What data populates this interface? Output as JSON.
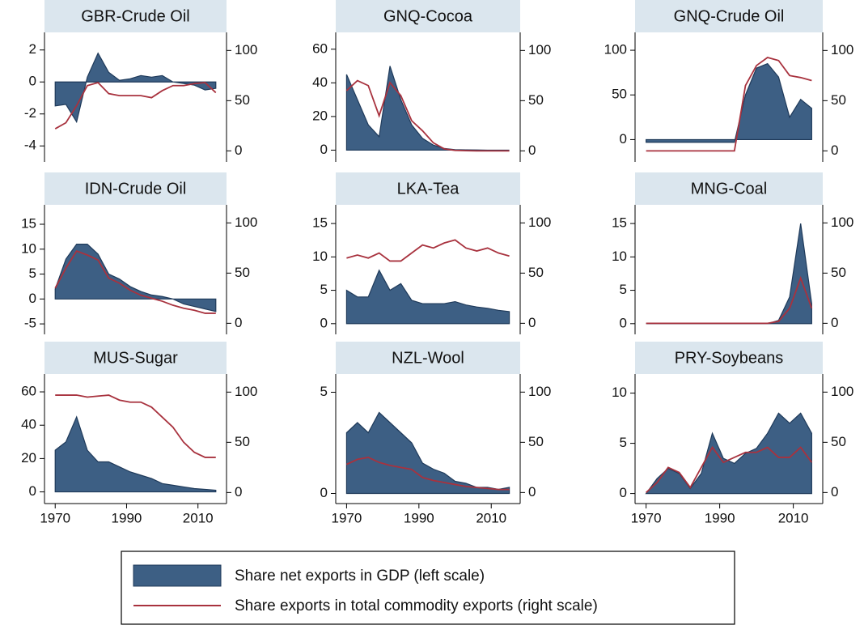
{
  "chart_data": [
    {
      "type": "combo",
      "title": "GBR-Crude Oil",
      "x": [
        1970,
        1973,
        1976,
        1979,
        1982,
        1985,
        1988,
        1991,
        1994,
        1997,
        2000,
        2003,
        2006,
        2009,
        2012,
        2015
      ],
      "xlim": [
        1967,
        2018
      ],
      "ylim": [
        -5,
        3.1
      ],
      "yticks": [
        -4,
        -2,
        0,
        2
      ],
      "y2lim": [
        -11,
        118
      ],
      "y2ticks": [
        0,
        50,
        100
      ],
      "series": [
        {
          "type": "area",
          "color": "#3d5f84",
          "values": [
            -1.5,
            -1.4,
            -2.5,
            0.3,
            1.8,
            0.6,
            0.1,
            0.2,
            0.4,
            0.3,
            0.4,
            0,
            -0.1,
            -0.2,
            -0.5,
            -0.4
          ]
        },
        {
          "type": "line",
          "axis": "y2",
          "color": "#a8323e",
          "values": [
            22,
            28,
            45,
            65,
            68,
            57,
            55,
            55,
            55,
            53,
            60,
            65,
            65,
            67,
            68,
            58
          ]
        }
      ]
    },
    {
      "type": "combo",
      "title": "GNQ-Cocoa",
      "x": [
        1970,
        1973,
        1976,
        1979,
        1982,
        1985,
        1988,
        1991,
        1994,
        1997,
        2000,
        2003,
        2006,
        2009,
        2012,
        2015
      ],
      "xlim": [
        1967,
        2018
      ],
      "ylim": [
        -7,
        70
      ],
      "yticks": [
        0,
        20,
        40,
        60
      ],
      "y2lim": [
        -11,
        118
      ],
      "y2ticks": [
        0,
        50,
        100
      ],
      "series": [
        {
          "type": "area",
          "color": "#3d5f84",
          "values": [
            45,
            30,
            15,
            8,
            50,
            30,
            15,
            7,
            3,
            1,
            0.3,
            0.2,
            0.1,
            0,
            0,
            0
          ]
        },
        {
          "type": "line",
          "axis": "y2",
          "color": "#a8323e",
          "values": [
            60,
            70,
            65,
            35,
            68,
            55,
            30,
            20,
            8,
            2,
            0.5,
            0.2,
            0,
            0,
            0,
            0
          ]
        }
      ]
    },
    {
      "type": "combo",
      "title": "GNQ-Crude Oil",
      "x": [
        1970,
        1973,
        1976,
        1979,
        1982,
        1985,
        1988,
        1991,
        1994,
        1997,
        2000,
        2003,
        2006,
        2009,
        2012,
        2015
      ],
      "xlim": [
        1967,
        2018
      ],
      "ylim": [
        -25,
        120
      ],
      "yticks": [
        0,
        50,
        100
      ],
      "y2lim": [
        -11,
        118
      ],
      "y2ticks": [
        0,
        50,
        100
      ],
      "series": [
        {
          "type": "area",
          "color": "#3d5f84",
          "values": [
            -3,
            -3,
            -3,
            -3,
            -3,
            -3,
            -3,
            -3,
            -3,
            50,
            80,
            85,
            70,
            25,
            45,
            35
          ]
        },
        {
          "type": "line",
          "axis": "y2",
          "color": "#a8323e",
          "values": [
            0,
            0,
            0,
            0,
            0,
            0,
            0,
            0,
            0,
            65,
            85,
            93,
            90,
            75,
            73,
            70
          ]
        }
      ]
    },
    {
      "type": "combo",
      "title": "IDN-Crude Oil",
      "x": [
        1970,
        1973,
        1976,
        1979,
        1982,
        1985,
        1988,
        1991,
        1994,
        1997,
        2000,
        2003,
        2006,
        2009,
        2012,
        2015
      ],
      "xlim": [
        1967,
        2018
      ],
      "ylim": [
        -7.1,
        18.9
      ],
      "yticks": [
        -5,
        0,
        5,
        10,
        15
      ],
      "y2lim": [
        -11,
        118
      ],
      "y2ticks": [
        0,
        50,
        100
      ],
      "series": [
        {
          "type": "area",
          "color": "#3d5f84",
          "values": [
            2,
            8,
            11,
            11,
            9,
            5,
            4,
            2.5,
            1.5,
            0.8,
            0.5,
            0,
            -1,
            -1.5,
            -2,
            -2.5
          ]
        },
        {
          "type": "line",
          "axis": "y2",
          "color": "#a8323e",
          "values": [
            35,
            55,
            72,
            68,
            63,
            45,
            40,
            33,
            28,
            25,
            22,
            18,
            15,
            13,
            10,
            10
          ]
        }
      ]
    },
    {
      "type": "combo",
      "title": "LKA-Tea",
      "x": [
        1970,
        1973,
        1976,
        1979,
        1982,
        1985,
        1988,
        1991,
        1994,
        1997,
        2000,
        2003,
        2006,
        2009,
        2012,
        2015
      ],
      "xlim": [
        1967,
        2018
      ],
      "ylim": [
        -1.6,
        17.8
      ],
      "yticks": [
        0,
        5,
        10,
        15
      ],
      "y2lim": [
        -11,
        118
      ],
      "y2ticks": [
        0,
        50,
        100
      ],
      "series": [
        {
          "type": "area",
          "color": "#3d5f84",
          "values": [
            5,
            4,
            4,
            8,
            5,
            6,
            3.5,
            3,
            3,
            3,
            3.3,
            2.8,
            2.5,
            2.3,
            2,
            1.8
          ]
        },
        {
          "type": "line",
          "axis": "y2",
          "color": "#a8323e",
          "values": [
            65,
            68,
            65,
            70,
            62,
            62,
            70,
            78,
            75,
            80,
            83,
            75,
            72,
            75,
            70,
            67
          ]
        }
      ]
    },
    {
      "type": "combo",
      "title": "MNG-Coal",
      "x": [
        1970,
        1973,
        1976,
        1979,
        1982,
        1985,
        1988,
        1991,
        1994,
        1997,
        2000,
        2003,
        2006,
        2009,
        2012,
        2015
      ],
      "xlim": [
        1967,
        2018
      ],
      "ylim": [
        -1.6,
        17.8
      ],
      "yticks": [
        0,
        5,
        10,
        15
      ],
      "y2lim": [
        -11,
        118
      ],
      "y2ticks": [
        0,
        50,
        100
      ],
      "series": [
        {
          "type": "area",
          "color": "#3d5f84",
          "values": [
            0,
            0,
            0,
            0,
            0,
            0,
            0,
            0,
            0,
            0,
            0,
            0,
            0.5,
            4,
            15,
            3
          ]
        },
        {
          "type": "line",
          "axis": "y2",
          "color": "#a8323e",
          "values": [
            0,
            0,
            0,
            0,
            0,
            0,
            0,
            0,
            0,
            0,
            0,
            0,
            2,
            15,
            45,
            15
          ]
        }
      ]
    },
    {
      "type": "combo",
      "title": "MUS-Sugar",
      "x": [
        1970,
        1973,
        1976,
        1979,
        1982,
        1985,
        1988,
        1991,
        1994,
        1997,
        2000,
        2003,
        2006,
        2009,
        2012,
        2015
      ],
      "xlim": [
        1967,
        2018
      ],
      "xticks": [
        1970,
        1990,
        2010
      ],
      "ylim": [
        -7,
        70.7
      ],
      "yticks": [
        0,
        20,
        40,
        60
      ],
      "y2lim": [
        -11,
        118
      ],
      "y2ticks": [
        0,
        50,
        100
      ],
      "series": [
        {
          "type": "area",
          "color": "#3d5f84",
          "values": [
            25,
            30,
            45,
            25,
            18,
            18,
            15,
            12,
            10,
            8,
            5,
            4,
            3,
            2,
            1.5,
            1
          ]
        },
        {
          "type": "line",
          "axis": "y2",
          "color": "#a8323e",
          "values": [
            97,
            97,
            97,
            95,
            96,
            97,
            92,
            90,
            90,
            85,
            75,
            65,
            50,
            40,
            35,
            35
          ]
        }
      ]
    },
    {
      "type": "combo",
      "title": "NZL-Wool",
      "x": [
        1970,
        1973,
        1976,
        1979,
        1982,
        1985,
        1988,
        1991,
        1994,
        1997,
        2000,
        2003,
        2006,
        2009,
        2012,
        2015
      ],
      "xlim": [
        1967,
        2018
      ],
      "xticks": [
        1970,
        1990,
        2010
      ],
      "ylim": [
        -0.5,
        5.9
      ],
      "yticks": [
        0,
        5
      ],
      "y2lim": [
        -11,
        118
      ],
      "y2ticks": [
        0,
        50,
        100
      ],
      "series": [
        {
          "type": "area",
          "color": "#3d5f84",
          "values": [
            3,
            3.5,
            3,
            4,
            3.5,
            3,
            2.5,
            1.5,
            1.2,
            1,
            0.6,
            0.5,
            0.3,
            0.3,
            0.2,
            0.3
          ]
        },
        {
          "type": "line",
          "axis": "y2",
          "color": "#a8323e",
          "values": [
            28,
            33,
            35,
            30,
            27,
            25,
            23,
            15,
            12,
            10,
            8,
            6,
            5,
            4,
            3,
            3
          ]
        }
      ]
    },
    {
      "type": "combo",
      "title": "PRY-Soybeans",
      "x": [
        1970,
        1973,
        1976,
        1979,
        1982,
        1985,
        1988,
        1991,
        1994,
        1997,
        2000,
        2003,
        2006,
        2009,
        2012,
        2015
      ],
      "xlim": [
        1967,
        2018
      ],
      "xticks": [
        1970,
        1990,
        2010
      ],
      "ylim": [
        -1,
        11.9
      ],
      "yticks": [
        0,
        5,
        10
      ],
      "y2lim": [
        -11,
        118
      ],
      "y2ticks": [
        0,
        50,
        100
      ],
      "series": [
        {
          "type": "area",
          "color": "#3d5f84",
          "values": [
            0,
            1.5,
            2.5,
            2,
            0.5,
            2,
            6,
            3.5,
            3,
            4,
            4.5,
            6,
            8,
            7,
            8,
            6
          ]
        },
        {
          "type": "line",
          "axis": "y2",
          "color": "#a8323e",
          "values": [
            0,
            10,
            25,
            20,
            5,
            25,
            45,
            30,
            35,
            40,
            40,
            45,
            35,
            35,
            45,
            30
          ]
        }
      ]
    }
  ],
  "legend": [
    {
      "name": "Share net exports in GDP (left scale)",
      "color": "#3d5f84"
    },
    {
      "name": "Share exports in total commodity exports (right scale)",
      "color": "#a8323e"
    }
  ]
}
